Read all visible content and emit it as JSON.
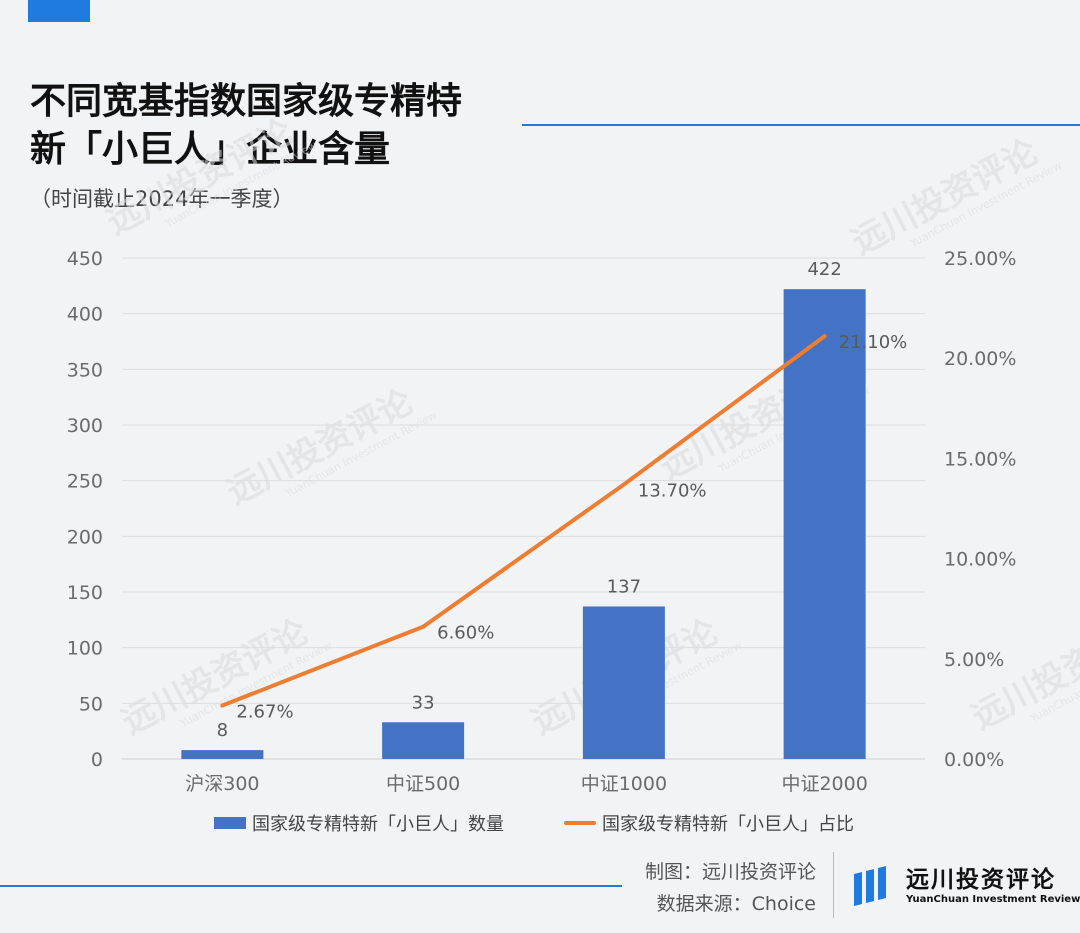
{
  "title": {
    "line1": "不同宽基指数国家级专精特",
    "line2": "新「小巨人」企业含量"
  },
  "subtitle": "（时间截止2024年一季度）",
  "watermark": {
    "cn": "远川投资评论",
    "en": "YuanChuan Investment Review"
  },
  "chart_data": {
    "type": "bar",
    "categories": [
      "沪深300",
      "中证500",
      "中证1000",
      "中证2000"
    ],
    "series": [
      {
        "name": "国家级专精特新「小巨人」数量",
        "type": "bar",
        "axis": "left",
        "values": [
          8,
          33,
          137,
          422
        ],
        "labels": [
          "8",
          "33",
          "137",
          "422"
        ],
        "color": "#4472c4"
      },
      {
        "name": "国家级专精特新「小巨人」占比",
        "type": "line",
        "axis": "right",
        "values": [
          2.67,
          6.6,
          13.7,
          21.1
        ],
        "labels": [
          "2.67%",
          "6.60%",
          "13.70%",
          "21.10%"
        ],
        "color": "#ed7d31"
      }
    ],
    "ylim_left": [
      0,
      450
    ],
    "ylim_right": [
      0,
      25
    ],
    "yticks_left": [
      "450",
      "400",
      "350",
      "300",
      "250",
      "200",
      "150",
      "100",
      "50",
      "0"
    ],
    "yticks_right": [
      "25.00%",
      "20.00%",
      "15.00%",
      "10.00%",
      "5.00%",
      "0.00%"
    ],
    "grid": true,
    "legend": "bottom"
  },
  "credits": {
    "maker": "制图：远川投资评论",
    "source": "数据来源：Choice"
  },
  "logo": {
    "cn": "远川投资评论",
    "en": "YuanChuan Investment Review"
  },
  "colors": {
    "accent": "#1f7be0",
    "bar": "#4472c4",
    "line": "#ed7d31"
  }
}
